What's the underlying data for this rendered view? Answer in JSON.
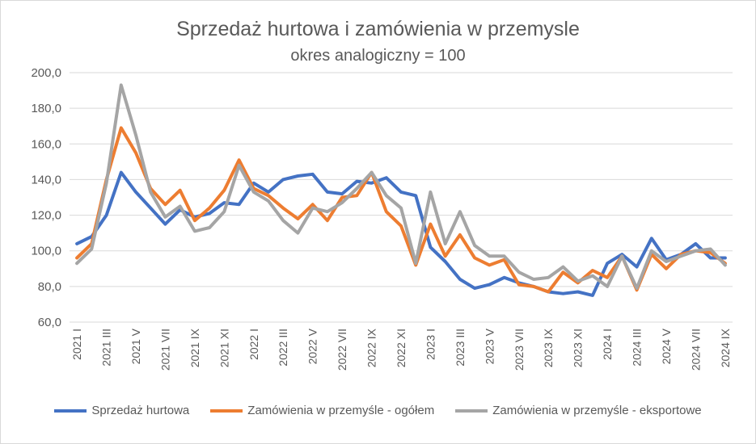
{
  "chart_data": {
    "type": "line",
    "title": "Sprzedaż  hurtowa i zamówienia w przemysle",
    "subtitle": "okres analogiczny = 100",
    "xlabel": "",
    "ylabel": "",
    "ylim": [
      60,
      200
    ],
    "y_ticks": [
      "60,0",
      "80,0",
      "100,0",
      "120,0",
      "140,0",
      "160,0",
      "180,0",
      "200,0"
    ],
    "grid": true,
    "legend_position": "bottom",
    "x": [
      "2021 I",
      "2021 II",
      "2021 III",
      "2021 IV",
      "2021 V",
      "2021 VI",
      "2021 VII",
      "2021 VIII",
      "2021 IX",
      "2021 X",
      "2021 XI",
      "2021 XII",
      "2022 I",
      "2022 II",
      "2022 III",
      "2022 IV",
      "2022 V",
      "2022 VI",
      "2022 VII",
      "2022 VIII",
      "2022 IX",
      "2022 X",
      "2022 XI",
      "2022 XII",
      "2023 I",
      "2023 II",
      "2023 III",
      "2023 IV",
      "2023 V",
      "2023 VI",
      "2023 VII",
      "2023 VIII",
      "2023 IX",
      "2023 X",
      "2023 XI",
      "2023 XII",
      "2024 I",
      "2024 II",
      "2024 III",
      "2024 IV",
      "2024 V",
      "2024 VI",
      "2024 VII",
      "2024 VIII",
      "2024 IX"
    ],
    "x_tick_labels": [
      "2021 I",
      "2021 III",
      "2021 V",
      "2021 VII",
      "2021 IX",
      "2021 XI",
      "2022 I",
      "2022 III",
      "2022 V",
      "2022 VII",
      "2022 IX",
      "2022 XI",
      "2023 I",
      "2023 III",
      "2023 V",
      "2023 VII",
      "2023 IX",
      "2023 XI",
      "2024 I",
      "2024 III",
      "2024 V",
      "2024 VII",
      "2024 IX"
    ],
    "series": [
      {
        "name": "Sprzedaż hurtowa",
        "color": "#4472c4",
        "values": [
          104,
          108,
          120,
          144,
          133,
          124,
          115,
          123,
          119,
          121,
          127,
          126,
          138,
          133,
          140,
          142,
          143,
          133,
          132,
          139,
          138,
          141,
          133,
          131,
          102,
          94,
          84,
          79,
          81,
          85,
          82,
          80,
          77,
          76,
          77,
          75,
          93,
          98,
          91,
          107,
          95,
          98,
          104,
          96,
          96
        ]
      },
      {
        "name": "Zamówienia w przemyśle - ogółem",
        "color": "#ed7d31",
        "values": [
          96,
          104,
          140,
          169,
          155,
          135,
          126,
          134,
          117,
          124,
          134,
          151,
          135,
          131,
          124,
          118,
          126,
          117,
          130,
          131,
          144,
          122,
          114,
          92,
          115,
          97,
          109,
          96,
          92,
          95,
          81,
          80,
          77,
          88,
          82,
          89,
          85,
          97,
          78,
          98,
          90,
          98,
          100,
          99,
          93
        ]
      },
      {
        "name": "Zamówienia w przemyśle - eksportowe",
        "color": "#a5a5a5",
        "values": [
          93,
          101,
          138,
          193,
          165,
          133,
          119,
          125,
          111,
          113,
          122,
          148,
          133,
          128,
          117,
          110,
          124,
          122,
          127,
          135,
          144,
          131,
          124,
          93,
          133,
          104,
          122,
          103,
          97,
          97,
          88,
          84,
          85,
          91,
          83,
          86,
          80,
          97,
          79,
          100,
          94,
          97,
          100,
          101,
          92
        ]
      }
    ]
  }
}
